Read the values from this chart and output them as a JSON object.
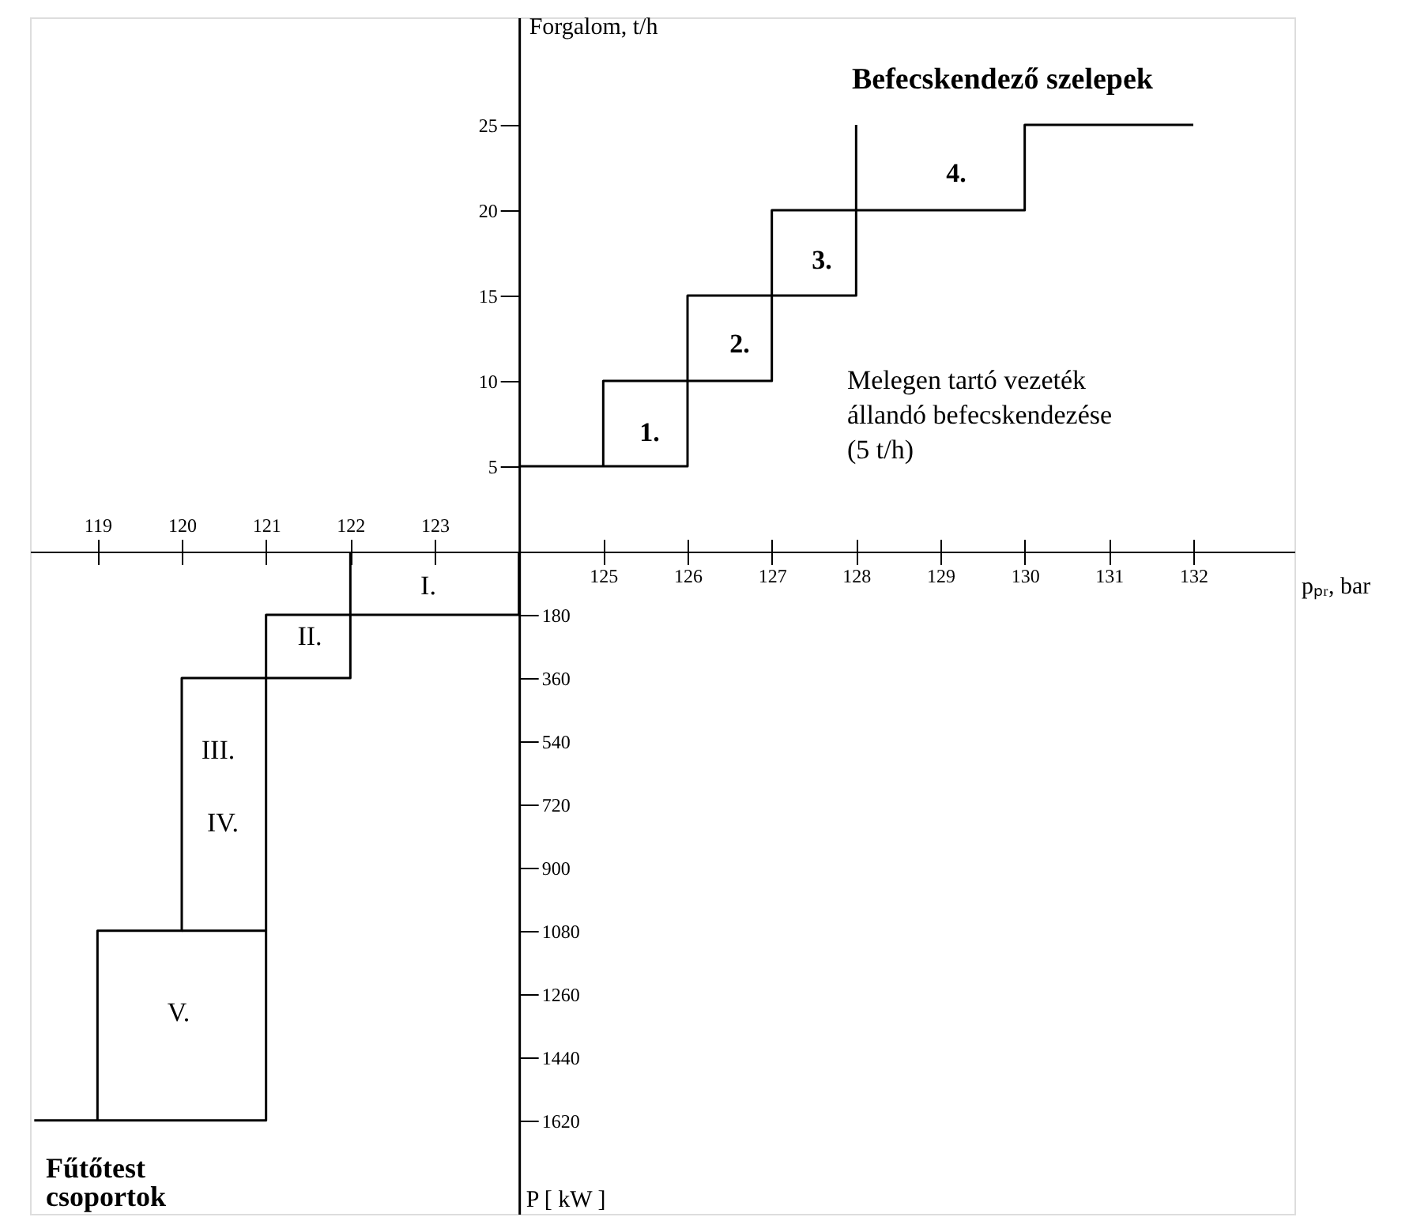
{
  "chart_data": [
    {
      "type": "line",
      "title": "Befecskendező szelepek",
      "xlabel": "pₚᵣ, bar",
      "ylabel": "Forgalom, t/h",
      "xlim": [
        118.2,
        133.2
      ],
      "ylim": [
        0,
        31.3
      ],
      "xticks": [
        {
          "value": 119,
          "label": null
        },
        {
          "value": 120,
          "label": null
        },
        {
          "value": 121,
          "label": null
        },
        {
          "value": 122,
          "label": null
        },
        {
          "value": 123,
          "label": null
        },
        125,
        126,
        127,
        128,
        129,
        130,
        131,
        132
      ],
      "yticks": [
        5,
        10,
        15,
        20,
        25
      ],
      "series": [
        {
          "color": "#000000",
          "x": [
            124,
            126,
            126,
            127,
            127,
            128,
            128,
            130,
            130,
            132
          ],
          "values": [
            5,
            5,
            10,
            10,
            15,
            15,
            20,
            20,
            25,
            25
          ]
        },
        {
          "color": "#000000",
          "x": [
            128,
            128,
            127,
            127,
            126,
            126,
            125,
            125
          ],
          "values": [
            25,
            20,
            20,
            15,
            15,
            10,
            10,
            5
          ]
        }
      ],
      "annotations": [
        "1.",
        "2.",
        "3.",
        "4.",
        "Melegen tartó vezeték\nállandó befecskendezése\n(5 t/h)"
      ]
    },
    {
      "type": "line",
      "title": "Fűtőtest\ncsoportok",
      "ylabel": "P [ kW ]",
      "xlim": [
        118.2,
        133.2
      ],
      "ylim": [
        1886,
        0
      ],
      "xticks": [
        119,
        120,
        121,
        122,
        123,
        {
          "value": 125,
          "label": null
        },
        {
          "value": 126,
          "label": null
        },
        {
          "value": 127,
          "label": null
        },
        {
          "value": 128,
          "label": null
        },
        {
          "value": 129,
          "label": null
        },
        {
          "value": 130,
          "label": null
        },
        {
          "value": 131,
          "label": null
        },
        {
          "value": 132,
          "label": null
        }
      ],
      "yticks": [
        180,
        360,
        540,
        720,
        900,
        1080,
        1260,
        1440,
        1620
      ],
      "series": [
        {
          "color": "#000000",
          "x": [
            122,
            122,
            121,
            121,
            120,
            120,
            119,
            119
          ],
          "values": [
            0,
            180,
            180,
            360,
            360,
            1080,
            1080,
            1620
          ]
        },
        {
          "color": "#000000",
          "x": [
            118.25,
            121,
            121,
            120
          ],
          "values": [
            1620,
            1620,
            1080,
            1080
          ]
        },
        {
          "color": "#000000",
          "x": [
            121,
            121,
            122,
            122,
            124,
            124
          ],
          "values": [
            1080,
            360,
            360,
            180,
            180,
            0
          ]
        }
      ],
      "annotations": [
        "I.",
        "II.",
        "III.",
        "IV.",
        "V."
      ]
    }
  ]
}
